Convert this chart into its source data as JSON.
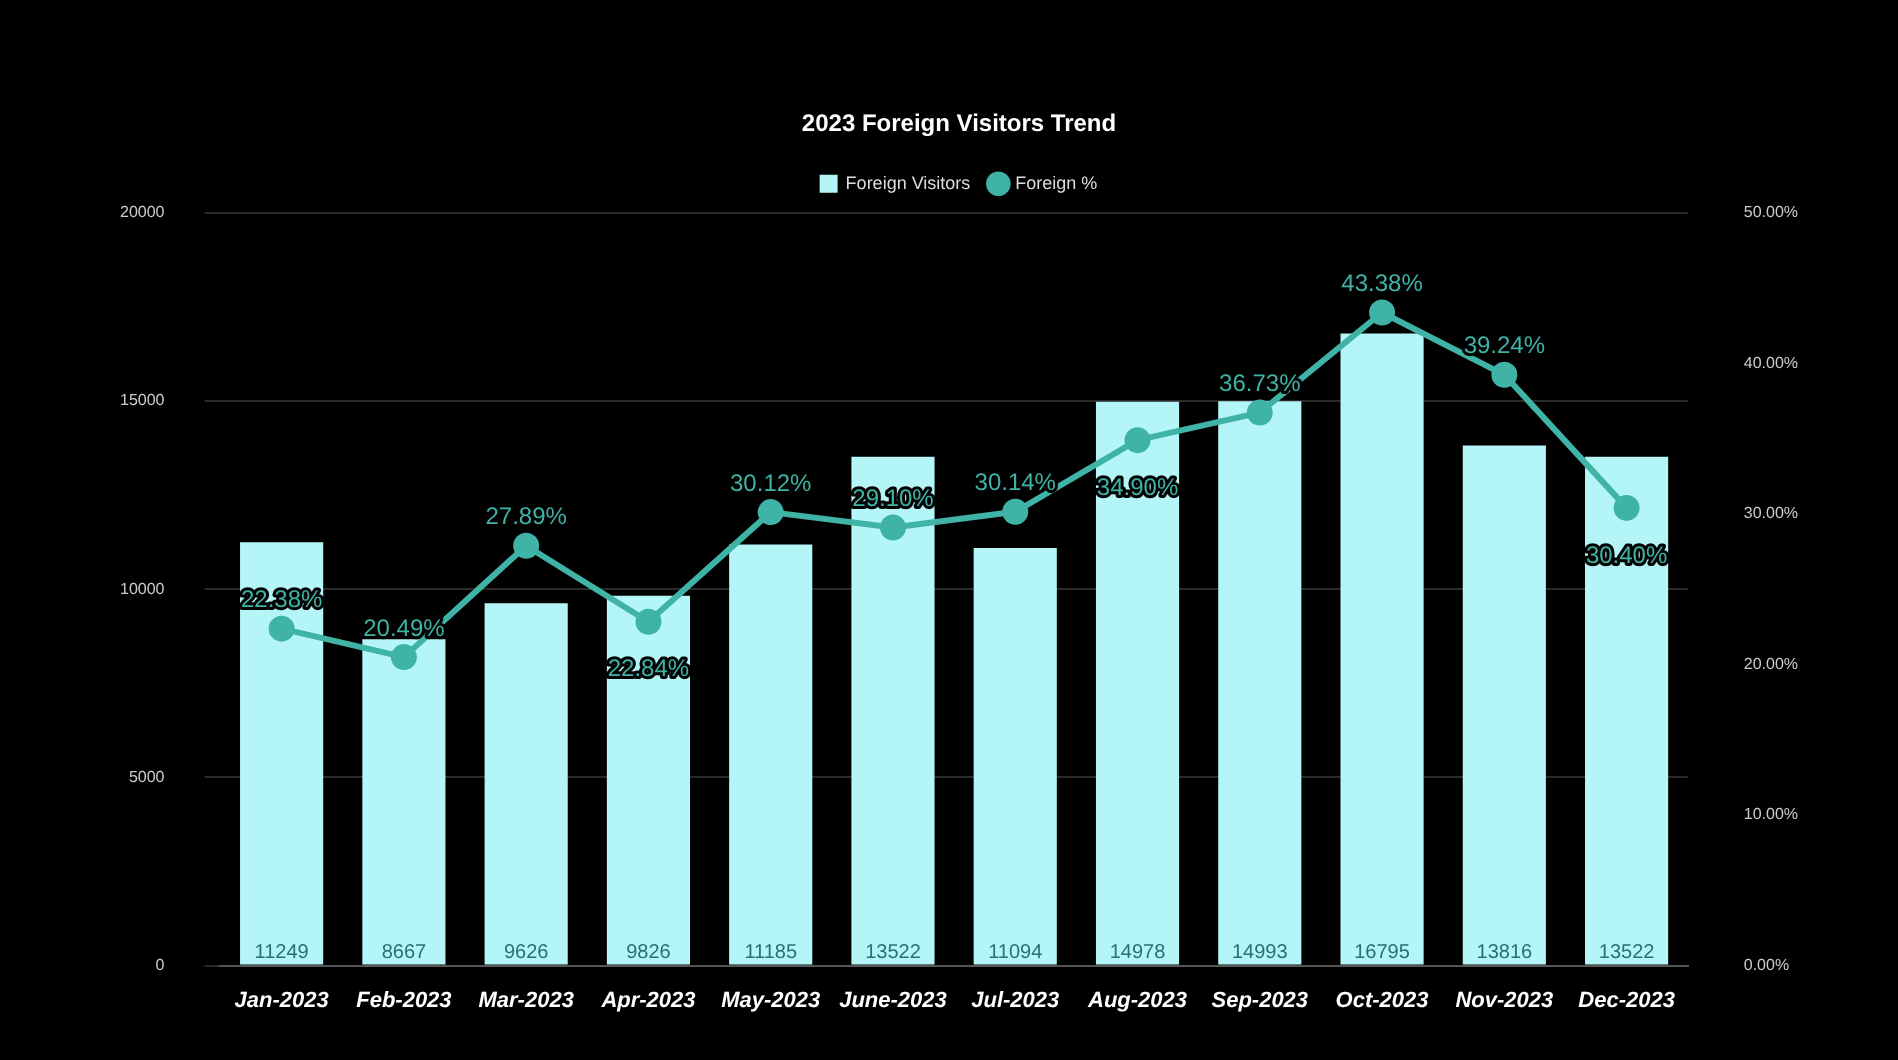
{
  "chart_data": {
    "type": "bar",
    "title": "2023 Foreign Visitors Trend",
    "categories": [
      "Jan-2023",
      "Feb-2023",
      "Mar-2023",
      "Apr-2023",
      "May-2023",
      "June-2023",
      "Jul-2023",
      "Aug-2023",
      "Sep-2023",
      "Oct-2023",
      "Nov-2023",
      "Dec-2023"
    ],
    "series": [
      {
        "name": "Foreign Visitors",
        "color": "#b4f6f8",
        "values": [
          11249,
          8667,
          9626,
          9826,
          11185,
          13522,
          11094,
          14978,
          14993,
          16795,
          13816,
          13522
        ]
      },
      {
        "name": "Foreign %",
        "type": "line",
        "axis": "y2",
        "color": "#3fb3a6",
        "values": [
          22.38,
          20.49,
          27.89,
          22.84,
          30.12,
          29.1,
          30.14,
          34.9,
          36.73,
          43.38,
          39.24,
          30.4
        ],
        "value_labels": [
          "22.38%",
          "20.49%",
          "27.89%",
          "22.84%",
          "30.12%",
          "29.10%",
          "30.14%",
          "34.90%",
          "36.73%",
          "43.38%",
          "39.24%",
          "30.40%"
        ]
      }
    ],
    "ylim": [
      0,
      20000
    ],
    "yticks": [
      0,
      5000,
      10000,
      15000,
      20000
    ],
    "y2lim": [
      0,
      50
    ],
    "y2ticks": [
      {
        "value": 0,
        "label": "0.00%"
      },
      {
        "value": 10,
        "label": "10.00%"
      },
      {
        "value": 20,
        "label": "20.00%"
      },
      {
        "value": 30,
        "label": "30.00%"
      },
      {
        "value": 40,
        "label": "40.00%"
      },
      {
        "value": 50,
        "label": "50.00%"
      }
    ],
    "grid": "y",
    "legend": "top",
    "marker": "circle",
    "data_labels": true
  }
}
